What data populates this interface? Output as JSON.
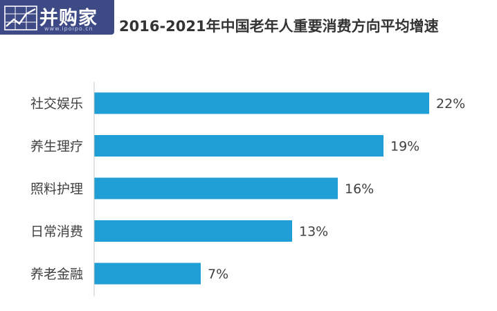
{
  "logo": {
    "text": "并购家",
    "sub": "www.ipoipo.cn",
    "icon": "chart-grid-icon"
  },
  "chart_data": {
    "type": "bar",
    "orientation": "horizontal",
    "title": "2016-2021年中国老年人重要消费方向平均增速",
    "categories": [
      "社交娱乐",
      "养生理疗",
      "照料护理",
      "日常消费",
      "养老金融"
    ],
    "values": [
      22,
      19,
      16,
      13,
      7
    ],
    "data_labels": [
      "22%",
      "19%",
      "16%",
      "13%",
      "7%"
    ],
    "value_unit": "%",
    "xlim": [
      0,
      22
    ],
    "grid": false,
    "legend": "none",
    "bar_color": "#1f9fd5"
  }
}
